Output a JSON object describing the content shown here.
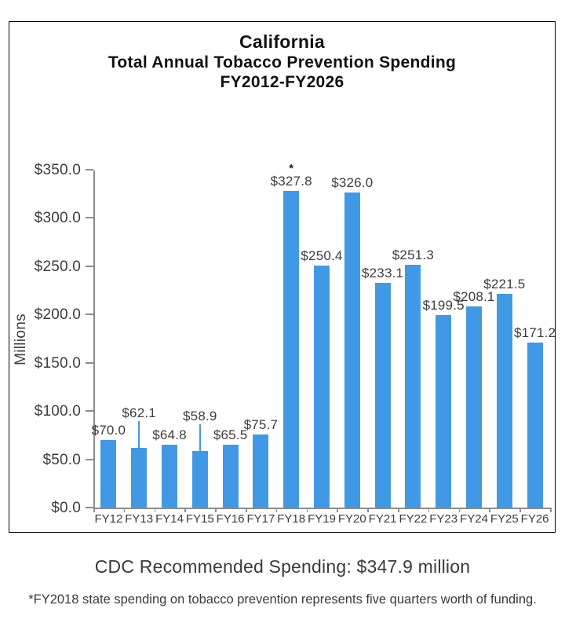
{
  "chart_data": {
    "type": "bar",
    "title": "California",
    "subtitle": "Total Annual Tobacco Prevention Spending",
    "subtitle2": "FY2012-FY2026",
    "categories": [
      "FY12",
      "FY13",
      "FY14",
      "FY15",
      "FY16",
      "FY17",
      "FY18",
      "FY19",
      "FY20",
      "FY21",
      "FY22",
      "FY23",
      "FY24",
      "FY25",
      "FY26"
    ],
    "values": [
      70.0,
      62.1,
      64.8,
      58.9,
      65.5,
      75.7,
      327.8,
      250.4,
      326.0,
      233.1,
      251.3,
      199.5,
      208.1,
      221.5,
      171.2
    ],
    "data_labels": [
      "$70.0",
      "$62.1",
      "$64.8",
      "$58.9",
      "$65.5",
      "$75.7",
      "$327.8",
      "$250.4",
      "$326.0",
      "$233.1",
      "$251.3",
      "$199.5",
      "$208.1",
      "$221.5",
      "$171.2"
    ],
    "elevated_label_indexes": [
      1,
      3
    ],
    "starred_index": 6,
    "star_symbol": "*",
    "ylabel": "Millions",
    "ylim": [
      0,
      350
    ],
    "ytick_step": 50,
    "ytick_labels": [
      "$0.0",
      "$50.0",
      "$100.0",
      "$150.0",
      "$200.0",
      "$250.0",
      "$300.0",
      "$350.0"
    ],
    "grid": false,
    "legend_position": "none",
    "bar_color": "#4199E6",
    "axis_color": "#8c8c8c",
    "label_color": "#3d3d3d"
  },
  "footer": {
    "cdc_line": "CDC Recommended Spending: $347.9 million",
    "footnote": "*FY2018 state spending on tobacco prevention represents five quarters worth of funding."
  }
}
